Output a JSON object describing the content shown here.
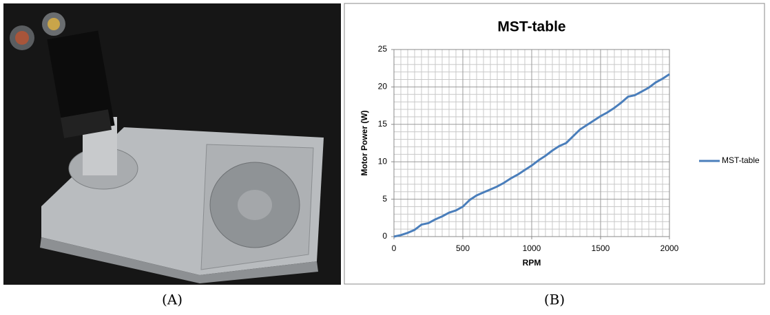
{
  "captions": [
    "(A)",
    "(B)"
  ],
  "chart_data": {
    "type": "line",
    "title": "MST-table",
    "x_label": "RPM",
    "y_label": "Motor Power (W)",
    "x": [
      0,
      50,
      100,
      150,
      200,
      250,
      300,
      350,
      400,
      450,
      500,
      550,
      600,
      650,
      700,
      750,
      800,
      850,
      900,
      950,
      1000,
      1050,
      1100,
      1150,
      1200,
      1250,
      1300,
      1350,
      1400,
      1450,
      1500,
      1550,
      1600,
      1650,
      1700,
      1750,
      1800,
      1850,
      1900,
      1950,
      2000
    ],
    "series": [
      {
        "name": "MST-table",
        "color": "#4a7ebb",
        "values": [
          0,
          0.2,
          0.5,
          0.9,
          1.6,
          1.8,
          2.3,
          2.7,
          3.2,
          3.5,
          4.0,
          4.9,
          5.5,
          5.9,
          6.3,
          6.7,
          7.2,
          7.8,
          8.3,
          8.9,
          9.5,
          10.2,
          10.8,
          11.5,
          12.1,
          12.5,
          13.4,
          14.3,
          14.9,
          15.5,
          16.1,
          16.6,
          17.2,
          17.9,
          18.7,
          18.9,
          19.4,
          19.9,
          20.6,
          21.1,
          21.7
        ]
      }
    ],
    "xlim": [
      0,
      2000
    ],
    "xticks": [
      0,
      500,
      1000,
      1500,
      2000
    ],
    "ylim": [
      0,
      25
    ],
    "yticks": [
      0,
      5,
      10,
      15,
      20,
      25
    ],
    "grid": true,
    "legend": "right"
  }
}
